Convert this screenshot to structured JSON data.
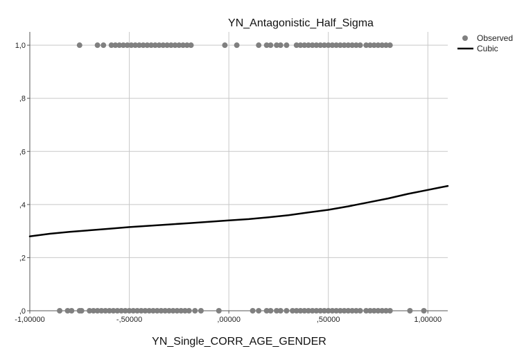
{
  "chart_data": {
    "type": "scatter",
    "title": "YN_Antagonistic_Half_Sigma",
    "xlabel": "YN_Single_CORR_AGE_GENDER",
    "ylabel": "",
    "xlim": [
      -1.0,
      1.1
    ],
    "ylim": [
      0.0,
      1.05
    ],
    "x_ticks": [
      -1.0,
      -0.5,
      0.0,
      0.5,
      1.0
    ],
    "x_tick_labels": [
      "-1,00000",
      "-,50000",
      ",00000",
      ",50000",
      "1,00000"
    ],
    "y_ticks": [
      0.0,
      0.2,
      0.4,
      0.6,
      0.8,
      1.0
    ],
    "y_tick_labels": [
      ",0",
      ",2",
      ",4",
      ",6",
      ",8",
      "1,0"
    ],
    "grid": true,
    "legend_position": "top-right",
    "colors": {
      "observed": "#808080",
      "cubic": "#000000",
      "grid": "#c8c8c8",
      "axis": "#555555"
    },
    "series": [
      {
        "name": "Observed",
        "kind": "scatter",
        "points": [
          {
            "x": -0.75,
            "y": 1.0
          },
          {
            "x": -0.66,
            "y": 1.0
          },
          {
            "x": -0.63,
            "y": 1.0
          },
          {
            "x": -0.59,
            "y": 1.0
          },
          {
            "x": -0.57,
            "y": 1.0
          },
          {
            "x": -0.55,
            "y": 1.0
          },
          {
            "x": -0.53,
            "y": 1.0
          },
          {
            "x": -0.51,
            "y": 1.0
          },
          {
            "x": -0.49,
            "y": 1.0
          },
          {
            "x": -0.47,
            "y": 1.0
          },
          {
            "x": -0.45,
            "y": 1.0
          },
          {
            "x": -0.43,
            "y": 1.0
          },
          {
            "x": -0.41,
            "y": 1.0
          },
          {
            "x": -0.39,
            "y": 1.0
          },
          {
            "x": -0.37,
            "y": 1.0
          },
          {
            "x": -0.35,
            "y": 1.0
          },
          {
            "x": -0.33,
            "y": 1.0
          },
          {
            "x": -0.31,
            "y": 1.0
          },
          {
            "x": -0.29,
            "y": 1.0
          },
          {
            "x": -0.27,
            "y": 1.0
          },
          {
            "x": -0.25,
            "y": 1.0
          },
          {
            "x": -0.23,
            "y": 1.0
          },
          {
            "x": -0.21,
            "y": 1.0
          },
          {
            "x": -0.19,
            "y": 1.0
          },
          {
            "x": -0.02,
            "y": 1.0
          },
          {
            "x": 0.04,
            "y": 1.0
          },
          {
            "x": 0.15,
            "y": 1.0
          },
          {
            "x": 0.19,
            "y": 1.0
          },
          {
            "x": 0.21,
            "y": 1.0
          },
          {
            "x": 0.24,
            "y": 1.0
          },
          {
            "x": 0.26,
            "y": 1.0
          },
          {
            "x": 0.29,
            "y": 1.0
          },
          {
            "x": 0.34,
            "y": 1.0
          },
          {
            "x": 0.36,
            "y": 1.0
          },
          {
            "x": 0.38,
            "y": 1.0
          },
          {
            "x": 0.4,
            "y": 1.0
          },
          {
            "x": 0.42,
            "y": 1.0
          },
          {
            "x": 0.44,
            "y": 1.0
          },
          {
            "x": 0.46,
            "y": 1.0
          },
          {
            "x": 0.48,
            "y": 1.0
          },
          {
            "x": 0.5,
            "y": 1.0
          },
          {
            "x": 0.52,
            "y": 1.0
          },
          {
            "x": 0.54,
            "y": 1.0
          },
          {
            "x": 0.56,
            "y": 1.0
          },
          {
            "x": 0.58,
            "y": 1.0
          },
          {
            "x": 0.6,
            "y": 1.0
          },
          {
            "x": 0.62,
            "y": 1.0
          },
          {
            "x": 0.64,
            "y": 1.0
          },
          {
            "x": 0.66,
            "y": 1.0
          },
          {
            "x": 0.69,
            "y": 1.0
          },
          {
            "x": 0.71,
            "y": 1.0
          },
          {
            "x": 0.73,
            "y": 1.0
          },
          {
            "x": 0.75,
            "y": 1.0
          },
          {
            "x": 0.77,
            "y": 1.0
          },
          {
            "x": 0.79,
            "y": 1.0
          },
          {
            "x": 0.81,
            "y": 1.0
          },
          {
            "x": -0.85,
            "y": 0.0
          },
          {
            "x": -0.81,
            "y": 0.0
          },
          {
            "x": -0.79,
            "y": 0.0
          },
          {
            "x": -0.75,
            "y": 0.0
          },
          {
            "x": -0.74,
            "y": 0.0
          },
          {
            "x": -0.7,
            "y": 0.0
          },
          {
            "x": -0.68,
            "y": 0.0
          },
          {
            "x": -0.66,
            "y": 0.0
          },
          {
            "x": -0.64,
            "y": 0.0
          },
          {
            "x": -0.62,
            "y": 0.0
          },
          {
            "x": -0.6,
            "y": 0.0
          },
          {
            "x": -0.58,
            "y": 0.0
          },
          {
            "x": -0.56,
            "y": 0.0
          },
          {
            "x": -0.54,
            "y": 0.0
          },
          {
            "x": -0.52,
            "y": 0.0
          },
          {
            "x": -0.5,
            "y": 0.0
          },
          {
            "x": -0.48,
            "y": 0.0
          },
          {
            "x": -0.46,
            "y": 0.0
          },
          {
            "x": -0.44,
            "y": 0.0
          },
          {
            "x": -0.42,
            "y": 0.0
          },
          {
            "x": -0.4,
            "y": 0.0
          },
          {
            "x": -0.38,
            "y": 0.0
          },
          {
            "x": -0.36,
            "y": 0.0
          },
          {
            "x": -0.34,
            "y": 0.0
          },
          {
            "x": -0.32,
            "y": 0.0
          },
          {
            "x": -0.3,
            "y": 0.0
          },
          {
            "x": -0.28,
            "y": 0.0
          },
          {
            "x": -0.26,
            "y": 0.0
          },
          {
            "x": -0.24,
            "y": 0.0
          },
          {
            "x": -0.22,
            "y": 0.0
          },
          {
            "x": -0.2,
            "y": 0.0
          },
          {
            "x": -0.17,
            "y": 0.0
          },
          {
            "x": -0.14,
            "y": 0.0
          },
          {
            "x": -0.05,
            "y": 0.0
          },
          {
            "x": 0.12,
            "y": 0.0
          },
          {
            "x": 0.15,
            "y": 0.0
          },
          {
            "x": 0.19,
            "y": 0.0
          },
          {
            "x": 0.21,
            "y": 0.0
          },
          {
            "x": 0.24,
            "y": 0.0
          },
          {
            "x": 0.26,
            "y": 0.0
          },
          {
            "x": 0.29,
            "y": 0.0
          },
          {
            "x": 0.32,
            "y": 0.0
          },
          {
            "x": 0.34,
            "y": 0.0
          },
          {
            "x": 0.36,
            "y": 0.0
          },
          {
            "x": 0.38,
            "y": 0.0
          },
          {
            "x": 0.4,
            "y": 0.0
          },
          {
            "x": 0.42,
            "y": 0.0
          },
          {
            "x": 0.44,
            "y": 0.0
          },
          {
            "x": 0.46,
            "y": 0.0
          },
          {
            "x": 0.48,
            "y": 0.0
          },
          {
            "x": 0.5,
            "y": 0.0
          },
          {
            "x": 0.52,
            "y": 0.0
          },
          {
            "x": 0.54,
            "y": 0.0
          },
          {
            "x": 0.56,
            "y": 0.0
          },
          {
            "x": 0.58,
            "y": 0.0
          },
          {
            "x": 0.6,
            "y": 0.0
          },
          {
            "x": 0.62,
            "y": 0.0
          },
          {
            "x": 0.64,
            "y": 0.0
          },
          {
            "x": 0.66,
            "y": 0.0
          },
          {
            "x": 0.69,
            "y": 0.0
          },
          {
            "x": 0.71,
            "y": 0.0
          },
          {
            "x": 0.73,
            "y": 0.0
          },
          {
            "x": 0.75,
            "y": 0.0
          },
          {
            "x": 0.77,
            "y": 0.0
          },
          {
            "x": 0.79,
            "y": 0.0
          },
          {
            "x": 0.81,
            "y": 0.0
          },
          {
            "x": 0.91,
            "y": 0.0
          },
          {
            "x": 0.98,
            "y": 0.0
          }
        ]
      },
      {
        "name": "Cubic",
        "kind": "line",
        "points": [
          {
            "x": -1.0,
            "y": 0.28
          },
          {
            "x": -0.9,
            "y": 0.29
          },
          {
            "x": -0.8,
            "y": 0.297
          },
          {
            "x": -0.7,
            "y": 0.303
          },
          {
            "x": -0.6,
            "y": 0.309
          },
          {
            "x": -0.5,
            "y": 0.315
          },
          {
            "x": -0.4,
            "y": 0.32
          },
          {
            "x": -0.3,
            "y": 0.325
          },
          {
            "x": -0.2,
            "y": 0.33
          },
          {
            "x": -0.1,
            "y": 0.335
          },
          {
            "x": 0.0,
            "y": 0.34
          },
          {
            "x": 0.1,
            "y": 0.345
          },
          {
            "x": 0.2,
            "y": 0.352
          },
          {
            "x": 0.3,
            "y": 0.36
          },
          {
            "x": 0.4,
            "y": 0.37
          },
          {
            "x": 0.5,
            "y": 0.38
          },
          {
            "x": 0.6,
            "y": 0.393
          },
          {
            "x": 0.7,
            "y": 0.408
          },
          {
            "x": 0.8,
            "y": 0.423
          },
          {
            "x": 0.9,
            "y": 0.44
          },
          {
            "x": 1.0,
            "y": 0.455
          },
          {
            "x": 1.1,
            "y": 0.47
          }
        ]
      }
    ]
  }
}
